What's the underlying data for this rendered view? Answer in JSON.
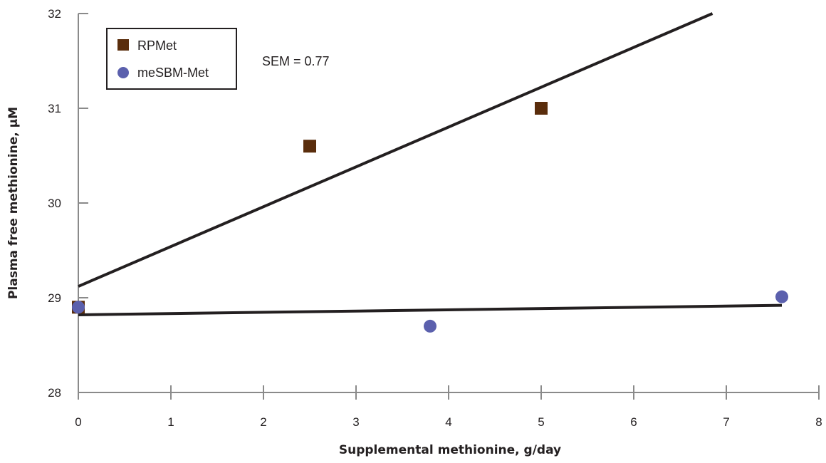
{
  "chart_data": {
    "type": "scatter",
    "title": "",
    "xlabel": "Supplemental methionine, g/day",
    "ylabel": "Plasma free methionine, µM",
    "xlim": [
      0,
      8
    ],
    "ylim": [
      28,
      32
    ],
    "x_ticks": [
      "0",
      "1",
      "2",
      "3",
      "4",
      "5",
      "6",
      "7",
      "8"
    ],
    "y_ticks": [
      "28",
      "29",
      "30",
      "31",
      "32"
    ],
    "grid": false,
    "legend_position": "top-left",
    "annotation": "SEM = 0.77",
    "series": [
      {
        "name": "RPMet",
        "marker": "square",
        "color": "#5a2d0c",
        "points": [
          [
            0,
            28.9
          ],
          [
            2.5,
            30.6
          ],
          [
            5,
            31.0
          ]
        ],
        "fit_line": [
          [
            0,
            29.12
          ],
          [
            6.85,
            32.0
          ]
        ]
      },
      {
        "name": "meSBM-Met",
        "marker": "circle",
        "color": "#5b60ad",
        "points": [
          [
            0,
            28.9
          ],
          [
            3.8,
            28.7
          ],
          [
            7.6,
            29.01
          ]
        ],
        "fit_line": [
          [
            0,
            28.82
          ],
          [
            7.6,
            28.92
          ]
        ]
      }
    ],
    "line_color": "#231f20",
    "axis_color": "#8a8a8a"
  }
}
